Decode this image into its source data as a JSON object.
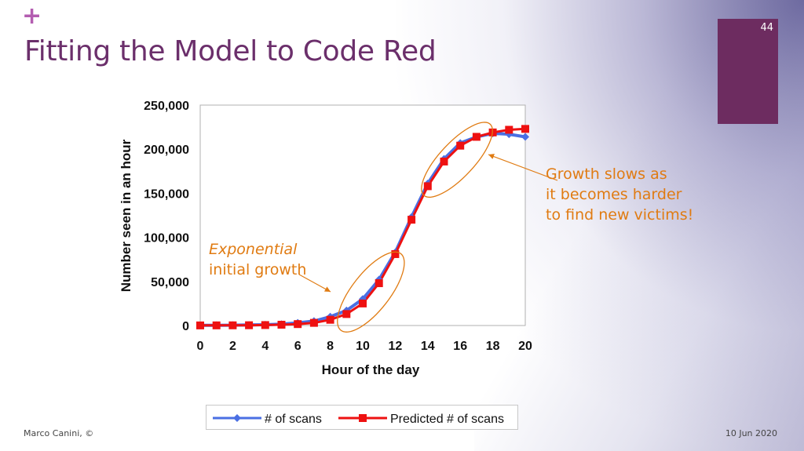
{
  "slide": {
    "title": "Fitting the Model to Code Red",
    "plus_glyph": "+",
    "slide_number": "44",
    "footer_left": "Marco Canini, ©",
    "footer_right": "10 Jun 2020",
    "accent_color": "#6d2c60",
    "title_color": "#6b2f6b"
  },
  "annotations": {
    "right_line1": "Growth slows as",
    "right_line2": "it becomes harder",
    "right_line3": "to find new victims!",
    "left_line1": "Exponential",
    "left_line2": "initial growth",
    "color": "#e07b12"
  },
  "chart_data": {
    "type": "line",
    "xlabel": "Hour of the day",
    "ylabel": "Number seen in an hour",
    "xlim": [
      0,
      20
    ],
    "ylim": [
      0,
      250000
    ],
    "xticks": [
      0,
      2,
      4,
      6,
      8,
      10,
      12,
      14,
      16,
      18,
      20
    ],
    "yticks": [
      0,
      50000,
      100000,
      150000,
      200000,
      250000
    ],
    "ytick_labels": [
      "0",
      "50,000",
      "100,000",
      "150,000",
      "200,000",
      "250,000"
    ],
    "x": [
      0,
      1,
      2,
      3,
      4,
      5,
      6,
      7,
      8,
      9,
      10,
      11,
      12,
      13,
      14,
      15,
      16,
      17,
      18,
      19,
      20
    ],
    "series": [
      {
        "name": "# of scans",
        "color": "#4a6fe3",
        "marker": "diamond",
        "values": [
          200,
          300,
          400,
          600,
          900,
          1500,
          3000,
          5000,
          10000,
          17000,
          30000,
          52000,
          83000,
          123000,
          161000,
          189000,
          207000,
          214000,
          218000,
          217000,
          214000
        ]
      },
      {
        "name": "Predicted # of scans",
        "color": "#ee1111",
        "marker": "square",
        "values": [
          100,
          150,
          200,
          300,
          500,
          900,
          1600,
          3000,
          6500,
          13000,
          25000,
          48000,
          81000,
          120000,
          158000,
          186000,
          204000,
          214000,
          219000,
          222000,
          223000
        ]
      }
    ],
    "grid": false,
    "legend_position": "bottom"
  }
}
